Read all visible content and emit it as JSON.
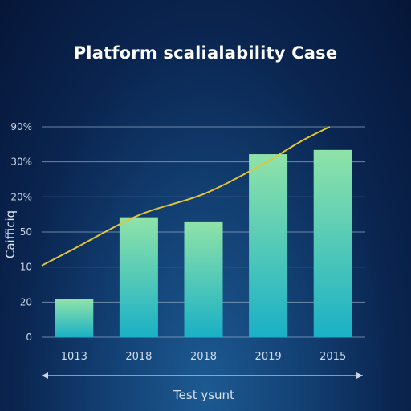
{
  "chart_data": {
    "type": "bar",
    "title": "Platform scalialability Case",
    "ylabel": "Caifficiq",
    "xlabel": "Test ysunt",
    "y_tick_labels": [
      "0",
      "20",
      "10",
      "50",
      "20%",
      "30%",
      "90%"
    ],
    "categories": [
      "1013",
      "2018",
      "2018",
      "2019",
      "2015"
    ],
    "values": [
      18,
      57,
      55,
      87,
      89
    ],
    "ylim": [
      0,
      100
    ],
    "line": {
      "x": [
        0,
        0.5,
        1.5,
        2.5,
        3.4,
        4.0,
        4.45
      ],
      "values": [
        34,
        42,
        58,
        68,
        82,
        93,
        100
      ]
    },
    "grid": true,
    "legend": "none",
    "colors": {
      "bar_top": "#8fe3a8",
      "bar_bottom": "#1ab0c6",
      "line": "#e0c53a",
      "grid": "#8fa4c2",
      "background": "#0a2550"
    }
  }
}
